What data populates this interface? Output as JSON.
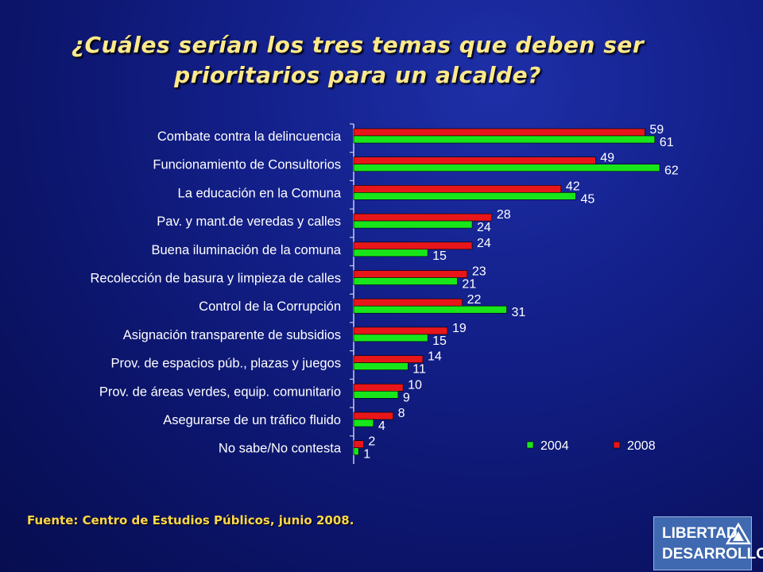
{
  "header": {
    "title_line1": "¿Cuáles serían los tres temas que deben ser",
    "title_line2": "prioritarios para un alcalde?"
  },
  "footer": {
    "source": "Fuente: Centro de Estudios Públicos, junio 2008."
  },
  "logo": {
    "line1": "LIBERTAD",
    "line2": "DESARROLLO"
  },
  "colors": {
    "series_2004": "#19e61a",
    "series_2008": "#e8161a",
    "label_text": "#ffffff",
    "axis": "#c8cbe6"
  },
  "chart_data": {
    "type": "bar",
    "orientation": "horizontal",
    "title": "¿Cuáles serían los tres temas que deben ser prioritarios para un alcalde?",
    "categories": [
      "Combate contra la delincuencia",
      "Funcionamiento de Consultorios",
      "La educación en la Comuna",
      "Pav. y mant.de veredas y calles",
      "Buena iluminación de la comuna",
      "Recolección de basura y limpieza de calles",
      "Control de la Corrupción",
      "Asignación transparente de subsidios",
      "Prov. de espacios púb., plazas y juegos",
      "Prov. de áreas verdes, equip. comunitario",
      "Asegurarse de un tráfico fluido",
      "No sabe/No contesta"
    ],
    "series": [
      {
        "name": "2008",
        "color": "#e8161a",
        "values": [
          59,
          49,
          42,
          28,
          24,
          23,
          22,
          19,
          14,
          10,
          8,
          2
        ]
      },
      {
        "name": "2004",
        "color": "#19e61a",
        "values": [
          61,
          62,
          45,
          24,
          15,
          21,
          31,
          15,
          11,
          9,
          4,
          1
        ]
      }
    ],
    "legend": {
      "placement": "bottom-right",
      "order": [
        "2004",
        "2008"
      ]
    },
    "grid": false,
    "xlim": [
      0,
      65
    ]
  }
}
